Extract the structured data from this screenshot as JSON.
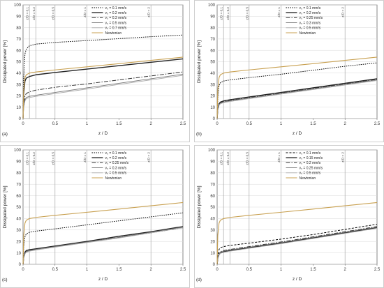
{
  "chart_data": [
    {
      "type": "line",
      "panel_label": "(a)",
      "xlabel": "z / D",
      "ylabel": "Dissipated power [%]",
      "xlim": [
        0,
        2.5
      ],
      "ylim": [
        0,
        100
      ],
      "xticks": [
        "0",
        "0.5",
        "1",
        "1.5",
        "2",
        "2.5"
      ],
      "yticks": [
        "0",
        "10",
        "20",
        "30",
        "40",
        "50",
        "60",
        "70",
        "80",
        "90",
        "100"
      ],
      "grid": true,
      "legend_position": "top-center",
      "vlines": [
        {
          "x": 0.1,
          "label": "z/D = 0.1"
        },
        {
          "x": 0.2,
          "label": "z/D = 0.2"
        },
        {
          "x": 0.5,
          "label": "z/D = 0.5"
        },
        {
          "x": 1,
          "label": "z/D = 1"
        },
        {
          "x": 2,
          "label": "z/D = 2"
        }
      ],
      "series": [
        {
          "name": "v₀ = 0.1 mm/s",
          "color": "#000000",
          "dash": "1.5,1.5",
          "width": 1.0,
          "x": [
            0,
            0.01,
            0.03,
            0.05,
            0.1,
            0.2,
            0.5,
            1,
            1.5,
            2,
            2.5
          ],
          "y": [
            0,
            35,
            57,
            61,
            64,
            65.5,
            67,
            68.6,
            70.3,
            72,
            73.5
          ]
        },
        {
          "name": "v₀ = 0.2 mm/s",
          "color": "#222222",
          "dash": "",
          "width": 1.4,
          "x": [
            0,
            0.01,
            0.03,
            0.05,
            0.1,
            0.2,
            0.5,
            1,
            1.5,
            2,
            2.5
          ],
          "y": [
            0,
            22,
            33,
            35.5,
            37,
            38.5,
            40.5,
            43.5,
            46.5,
            49.5,
            52.5
          ]
        },
        {
          "name": "v₀ = 0.3 mm/s",
          "color": "#333333",
          "dash": "6,2,1.5,2",
          "width": 1.0,
          "x": [
            0,
            0.01,
            0.03,
            0.05,
            0.1,
            0.2,
            0.5,
            1,
            1.5,
            2,
            2.5
          ],
          "y": [
            0,
            12,
            20,
            22,
            23.5,
            25,
            27.5,
            30.5,
            34,
            37.5,
            41
          ]
        },
        {
          "name": "v₀ = 0.5 mm/s",
          "color": "#777777",
          "dash": "",
          "width": 0.9,
          "x": [
            0,
            0.01,
            0.03,
            0.05,
            0.1,
            0.2,
            0.5,
            1,
            1.5,
            2,
            2.5
          ],
          "y": [
            0,
            10,
            16.5,
            18.5,
            19.5,
            20.5,
            23,
            27,
            31,
            35,
            39
          ]
        },
        {
          "name": "v₀ = 0.7 mm/s",
          "color": "#aaaaaa",
          "dash": "",
          "width": 0.9,
          "x": [
            0,
            0.01,
            0.03,
            0.05,
            0.1,
            0.2,
            0.5,
            1,
            1.5,
            2,
            2.5
          ],
          "y": [
            0,
            9,
            15.5,
            17.5,
            18.5,
            19.5,
            22,
            26,
            30,
            34,
            38
          ]
        },
        {
          "name": "Newtonian",
          "color": "#c8a050",
          "dash": "",
          "width": 1.1,
          "x": [
            0,
            0.01,
            0.03,
            0.05,
            0.1,
            0.2,
            0.5,
            1,
            1.5,
            2,
            2.5
          ],
          "y": [
            0,
            25,
            36,
            38.5,
            40,
            41,
            42.8,
            45.5,
            48.3,
            51.2,
            54
          ]
        }
      ]
    },
    {
      "type": "line",
      "panel_label": "(b)",
      "xlabel": "z / D",
      "ylabel": "Dissipated power [%]",
      "xlim": [
        0,
        2.5
      ],
      "ylim": [
        0,
        100
      ],
      "xticks": [
        "0",
        "0.5",
        "1",
        "1.5",
        "2",
        "2.5"
      ],
      "yticks": [
        "0",
        "10",
        "20",
        "30",
        "40",
        "50",
        "60",
        "70",
        "80",
        "90",
        "100"
      ],
      "grid": true,
      "legend_position": "top-center",
      "vlines": [
        {
          "x": 0.1,
          "label": "z/D = 0.1"
        },
        {
          "x": 0.2,
          "label": "z/D = 0.2"
        },
        {
          "x": 0.5,
          "label": "z/D = 0.5"
        },
        {
          "x": 1,
          "label": "z/D = 1"
        },
        {
          "x": 2,
          "label": "z/D = 2"
        }
      ],
      "series": [
        {
          "name": "v₀ = 0.1 mm/s",
          "color": "#000000",
          "dash": "1.5,1.5",
          "width": 1.0,
          "x": [
            0,
            0.01,
            0.03,
            0.05,
            0.1,
            0.2,
            0.5,
            1,
            1.5,
            2,
            2.5
          ],
          "y": [
            0,
            18,
            29,
            31.5,
            33,
            34,
            36,
            39,
            42.5,
            46,
            49
          ]
        },
        {
          "name": "v₀ = 0.2 mm/s",
          "color": "#222222",
          "dash": "",
          "width": 1.4,
          "x": [
            0,
            0.01,
            0.03,
            0.05,
            0.1,
            0.2,
            0.5,
            1,
            1.5,
            2,
            2.5
          ],
          "y": [
            0,
            8,
            13,
            14.5,
            15.5,
            16.5,
            19,
            23,
            27,
            31,
            35
          ]
        },
        {
          "name": "v₀ = 0.25 mm/s",
          "color": "#333333",
          "dash": "6,2,1.5,2",
          "width": 1.0,
          "x": [
            0,
            0.01,
            0.03,
            0.05,
            0.1,
            0.2,
            0.5,
            1,
            1.5,
            2,
            2.5
          ],
          "y": [
            0,
            7.5,
            12.5,
            14,
            15,
            16,
            18.5,
            22.5,
            26.5,
            30.5,
            34.5
          ]
        },
        {
          "name": "v₀ = 0.3 mm/s",
          "color": "#777777",
          "dash": "",
          "width": 0.9,
          "x": [
            0,
            0.01,
            0.03,
            0.05,
            0.1,
            0.2,
            0.5,
            1,
            1.5,
            2,
            2.5
          ],
          "y": [
            0,
            7,
            12,
            13.5,
            14.5,
            15.5,
            18,
            22,
            26,
            30,
            34
          ]
        },
        {
          "name": "v₀ = 0.5 mm/s",
          "color": "#aaaaaa",
          "dash": "",
          "width": 0.9,
          "x": [
            0,
            0.01,
            0.03,
            0.05,
            0.1,
            0.2,
            0.5,
            1,
            1.5,
            2,
            2.5
          ],
          "y": [
            0,
            7,
            11.5,
            13,
            14,
            15,
            17.5,
            21.5,
            25.5,
            29.5,
            33.5
          ]
        },
        {
          "name": "Newtonian",
          "color": "#c8a050",
          "dash": "",
          "width": 1.1,
          "x": [
            0,
            0.01,
            0.03,
            0.05,
            0.1,
            0.2,
            0.5,
            1,
            1.5,
            2,
            2.5
          ],
          "y": [
            0,
            25,
            36,
            38.5,
            40,
            41,
            42.8,
            45.5,
            48.3,
            51.2,
            54
          ]
        }
      ]
    },
    {
      "type": "line",
      "panel_label": "(c)",
      "xlabel": "z / D",
      "ylabel": "Dissipated power [%]",
      "xlim": [
        0,
        2.5
      ],
      "ylim": [
        0,
        100
      ],
      "xticks": [
        "0",
        "0.5",
        "1",
        "1.5",
        "2",
        "2.5"
      ],
      "yticks": [
        "0",
        "10",
        "20",
        "30",
        "40",
        "50",
        "60",
        "70",
        "80",
        "90",
        "100"
      ],
      "grid": true,
      "legend_position": "top-center",
      "vlines": [
        {
          "x": 0.1,
          "label": "z/D = 0.1"
        },
        {
          "x": 0.2,
          "label": "z/D = 0.2"
        },
        {
          "x": 0.5,
          "label": "z/D = 0.5"
        },
        {
          "x": 1,
          "label": "z/D = 1"
        },
        {
          "x": 2,
          "label": "z/D = 2"
        }
      ],
      "series": [
        {
          "name": "v₀ = 0.1 mm/s",
          "color": "#000000",
          "dash": "1.5,1.5",
          "width": 1.0,
          "x": [
            0,
            0.01,
            0.03,
            0.05,
            0.1,
            0.2,
            0.5,
            1,
            1.5,
            2,
            2.5
          ],
          "y": [
            0,
            15,
            24,
            26.5,
            28,
            29,
            31,
            34.5,
            38,
            41.5,
            45
          ]
        },
        {
          "name": "v₀ = 0.2 mm/s",
          "color": "#222222",
          "dash": "",
          "width": 1.4,
          "x": [
            0,
            0.01,
            0.03,
            0.05,
            0.1,
            0.2,
            0.5,
            1,
            1.5,
            2,
            2.5
          ],
          "y": [
            0,
            6,
            10.5,
            12,
            12.8,
            13.5,
            16,
            20,
            24.5,
            28.5,
            33
          ]
        },
        {
          "name": "v₀ = 0.25 mm/s",
          "color": "#333333",
          "dash": "6,2,1.5,2",
          "width": 1.0,
          "x": [
            0,
            0.01,
            0.03,
            0.05,
            0.1,
            0.2,
            0.5,
            1,
            1.5,
            2,
            2.5
          ],
          "y": [
            0,
            5.5,
            9.5,
            11,
            12,
            13,
            15.5,
            19.5,
            23.5,
            27.5,
            32
          ]
        },
        {
          "name": "v₀ = 0.3 mm/s",
          "color": "#777777",
          "dash": "",
          "width": 0.9,
          "x": [
            0,
            0.01,
            0.03,
            0.05,
            0.1,
            0.2,
            0.5,
            1,
            1.5,
            2,
            2.5
          ],
          "y": [
            0,
            5.5,
            9.5,
            11,
            12,
            13,
            15.5,
            19.5,
            23.5,
            28,
            32.5
          ]
        },
        {
          "name": "v₀ = 0.5 mm/s",
          "color": "#aaaaaa",
          "dash": "",
          "width": 0.9,
          "x": [
            0,
            0.01,
            0.03,
            0.05,
            0.1,
            0.2,
            0.5,
            1,
            1.5,
            2,
            2.5
          ],
          "y": [
            0,
            5,
            9,
            10.5,
            11.5,
            12.5,
            15,
            19,
            23,
            27.5,
            32
          ]
        },
        {
          "name": "Newtonian",
          "color": "#c8a050",
          "dash": "",
          "width": 1.1,
          "x": [
            0,
            0.01,
            0.03,
            0.05,
            0.1,
            0.2,
            0.5,
            1,
            1.5,
            2,
            2.5
          ],
          "y": [
            0,
            25,
            36,
            38.5,
            40,
            41,
            42.8,
            45.5,
            48.3,
            51.2,
            54
          ]
        }
      ]
    },
    {
      "type": "line",
      "panel_label": "(d)",
      "xlabel": "z / D",
      "ylabel": "Dissipated power [%]",
      "xlim": [
        0,
        2.5
      ],
      "ylim": [
        0,
        100
      ],
      "xticks": [
        "0",
        "0.5",
        "1",
        "1.5",
        "2",
        "2.5"
      ],
      "yticks": [
        "0",
        "10",
        "20",
        "30",
        "40",
        "50",
        "60",
        "70",
        "80",
        "90",
        "100"
      ],
      "grid": true,
      "legend_position": "top-center",
      "vlines": [
        {
          "x": 0.1,
          "label": "z/D = 0.1"
        },
        {
          "x": 0.2,
          "label": "z/D = 0.2"
        },
        {
          "x": 0.5,
          "label": "z/D = 0.5"
        },
        {
          "x": 1,
          "label": "z/D = 1"
        },
        {
          "x": 2,
          "label": "z/D = 2"
        }
      ],
      "series": [
        {
          "name": "v₀ = 0.1 mm/s",
          "color": "#000000",
          "dash": "3,2",
          "width": 1.0,
          "x": [
            0,
            0.01,
            0.03,
            0.05,
            0.1,
            0.2,
            0.5,
            1,
            1.5,
            2,
            2.5
          ],
          "y": [
            0,
            8,
            13,
            14.5,
            15.5,
            16.5,
            18.5,
            22,
            26,
            30.5,
            35
          ]
        },
        {
          "name": "v₀ = 0.15 mm/s",
          "color": "#222222",
          "dash": "",
          "width": 1.4,
          "x": [
            0,
            0.01,
            0.03,
            0.05,
            0.1,
            0.2,
            0.5,
            1,
            1.5,
            2,
            2.5
          ],
          "y": [
            0,
            5,
            8.5,
            10,
            11,
            12,
            14.5,
            18.5,
            23,
            27.5,
            32
          ]
        },
        {
          "name": "v₀ = 0.2 mm/s",
          "color": "#333333",
          "dash": "6,2,1.5,2",
          "width": 1.0,
          "x": [
            0,
            0.01,
            0.03,
            0.05,
            0.1,
            0.2,
            0.5,
            1,
            1.5,
            2,
            2.5
          ],
          "y": [
            0,
            5.5,
            9.5,
            11,
            12,
            13,
            15.5,
            19.5,
            24,
            28.5,
            33
          ]
        },
        {
          "name": "v₀ = 0.25 mm/s",
          "color": "#777777",
          "dash": "",
          "width": 0.9,
          "x": [
            0,
            0.01,
            0.03,
            0.05,
            0.1,
            0.2,
            0.5,
            1,
            1.5,
            2,
            2.5
          ],
          "y": [
            0,
            5,
            9,
            10.5,
            11.5,
            12.5,
            15,
            19,
            23.5,
            28,
            32.5
          ]
        },
        {
          "name": "v₀ = 0.5 mm/s",
          "color": "#aaaaaa",
          "dash": "",
          "width": 0.9,
          "x": [
            0,
            0.01,
            0.03,
            0.05,
            0.1,
            0.2,
            0.5,
            1,
            1.5,
            2,
            2.5
          ],
          "y": [
            0,
            4.5,
            8,
            9.5,
            10.5,
            11.5,
            14,
            18,
            22.5,
            27,
            31.5
          ]
        },
        {
          "name": "Newtonian",
          "color": "#c8a050",
          "dash": "",
          "width": 1.1,
          "x": [
            0,
            0.01,
            0.03,
            0.05,
            0.1,
            0.2,
            0.5,
            1,
            1.5,
            2,
            2.5
          ],
          "y": [
            0,
            25,
            36,
            38.5,
            40,
            41,
            42.8,
            45.5,
            48.3,
            51.2,
            54
          ]
        }
      ]
    }
  ]
}
